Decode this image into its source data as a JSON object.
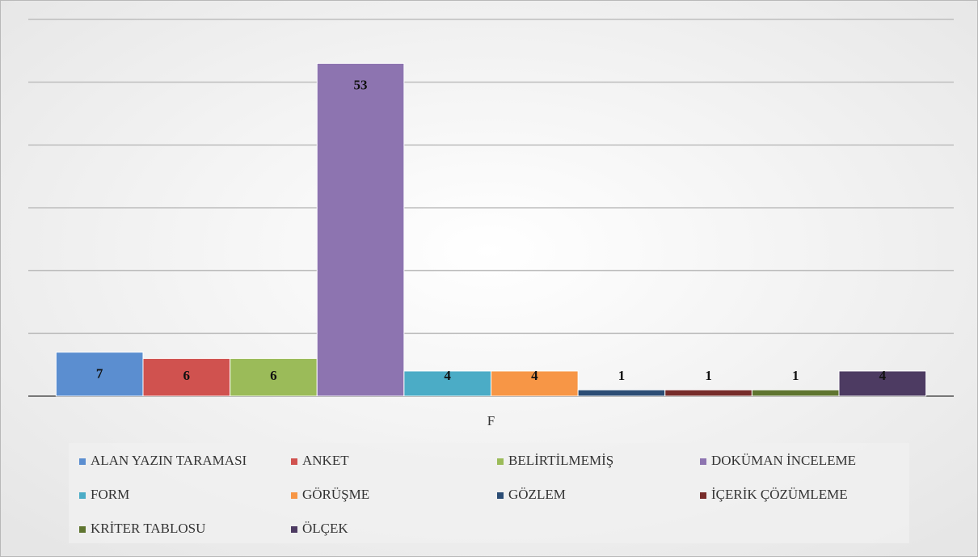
{
  "chart_data": {
    "type": "bar",
    "categories": [
      "F"
    ],
    "series": [
      {
        "name": "ALAN YAZIN TARAMASI",
        "color": "#5b8ed0",
        "values": [
          7
        ]
      },
      {
        "name": "ANKET",
        "color": "#d0524f",
        "values": [
          6
        ]
      },
      {
        "name": "BELİRTİLMEMİŞ",
        "color": "#9bbb59",
        "values": [
          6
        ]
      },
      {
        "name": "DOKÜMAN İNCELEME",
        "color": "#8d74b0",
        "values": [
          53
        ]
      },
      {
        "name": "FORM",
        "color": "#4bacc6",
        "values": [
          4
        ]
      },
      {
        "name": "GÖRÜŞME",
        "color": "#f79646",
        "values": [
          4
        ]
      },
      {
        "name": "GÖZLEM",
        "color": "#2c4d75",
        "values": [
          1
        ]
      },
      {
        "name": "İÇERİK ÇÖZÜMLEME",
        "color": "#772c2a",
        "values": [
          1
        ]
      },
      {
        "name": "KRİTER TABLOSU",
        "color": "#5f7530",
        "values": [
          1
        ]
      },
      {
        "name": "ÖLÇEK",
        "color": "#4d3b62",
        "values": [
          4
        ]
      }
    ],
    "ylim": [
      0,
      60
    ],
    "yticks": [
      0,
      10,
      20,
      30,
      40,
      50,
      60
    ],
    "grid": true,
    "legend": "bottom"
  }
}
